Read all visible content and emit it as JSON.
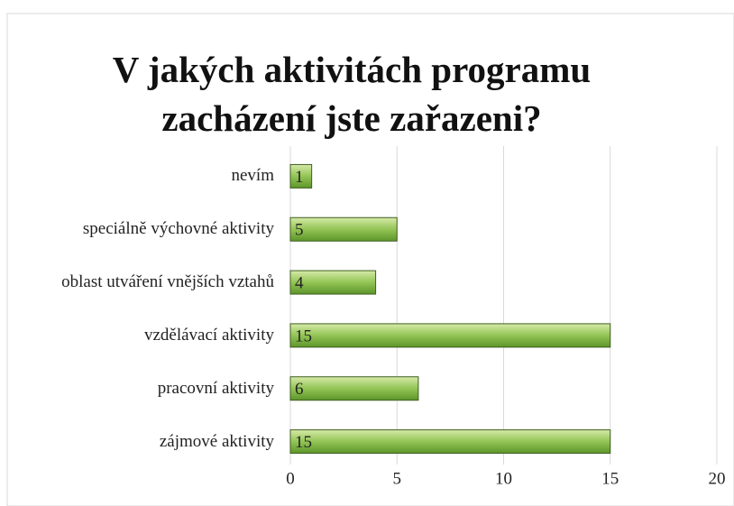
{
  "chart_data": {
    "type": "bar",
    "orientation": "horizontal",
    "title": "V jakých aktivitách programu zacházení jste zařazeni?",
    "categories": [
      "nevím",
      "speciálně výchovné aktivity",
      "oblast utváření vnějších vztahů",
      "vzdělávací aktivity",
      "pracovní aktivity",
      "zájmové aktivity"
    ],
    "values": [
      1,
      5,
      4,
      15,
      6,
      15
    ],
    "color": "#8cbf4a",
    "xlim": [
      0,
      20
    ],
    "xticks": [
      0,
      5,
      10,
      15,
      20
    ],
    "grid": true
  }
}
